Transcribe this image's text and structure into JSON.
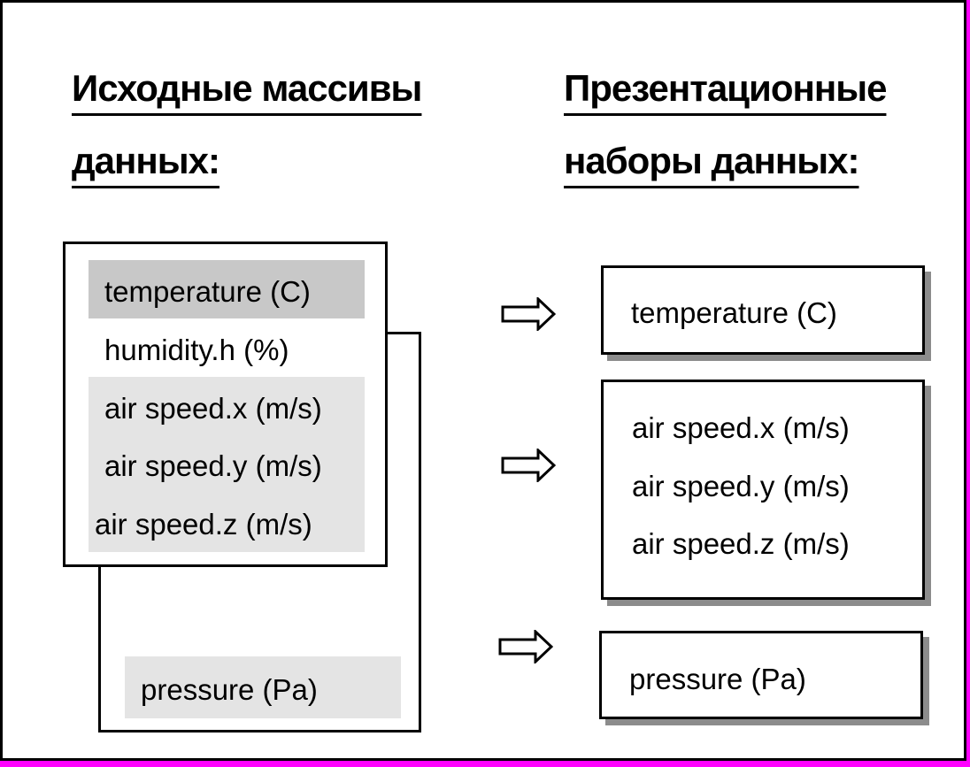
{
  "colors": {
    "outer_border": "#ff00ff",
    "highlight_dark": "#c8c8c8",
    "highlight_light": "#e4e4e4",
    "shadow": "#8c8c8c"
  },
  "headings": {
    "left_line1": "Исходные массивы",
    "left_line2": "данных:",
    "right_line1": "Презентационные",
    "right_line2": "наборы данных:"
  },
  "source_front": {
    "items": [
      "temperature (C)",
      "humidity.h (%)",
      "air speed.x (m/s)",
      "air speed.y (m/s)",
      "air speed.z (m/s)"
    ]
  },
  "source_back": {
    "items": [
      "pressure (Pa)"
    ]
  },
  "presentation": {
    "set1": [
      "temperature (C)"
    ],
    "set2": [
      "air speed.x (m/s)",
      "air speed.y (m/s)",
      "air speed.z (m/s)"
    ],
    "set3": [
      "pressure (Pa)"
    ]
  },
  "arrows": [
    "arrow-right-icon",
    "arrow-right-icon",
    "arrow-right-icon"
  ]
}
